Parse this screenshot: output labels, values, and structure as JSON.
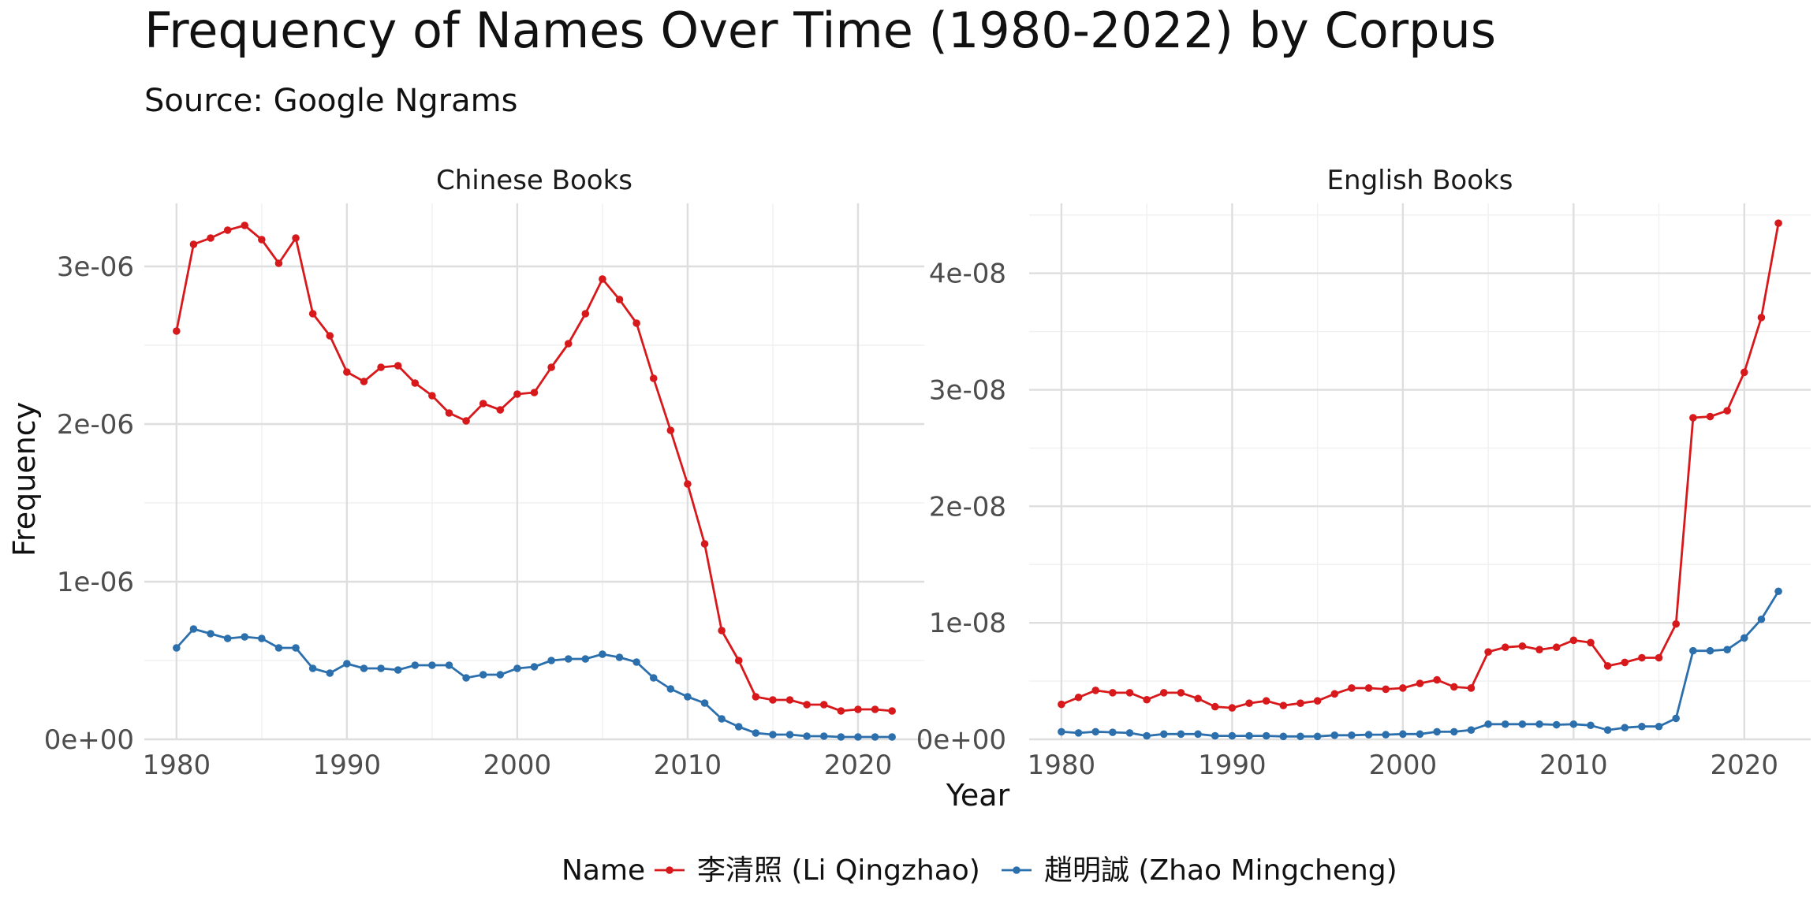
{
  "title": "Frequency of Names Over Time (1980-2022) by Corpus",
  "subtitle": "Source: Google Ngrams",
  "xlabel": "Year",
  "ylabel": "Frequency",
  "legend": {
    "title": "Name",
    "entries": [
      "李清照 (Li Qingzhao)",
      "趙明誠 (Zhao Mingcheng)"
    ],
    "placement": "bottom"
  },
  "colors": {
    "li": "#d7191c",
    "zhao": "#2c6fad"
  },
  "chart_data": [
    {
      "type": "line",
      "panel": "Chinese Books",
      "xlim": [
        1980,
        2022
      ],
      "ylim": [
        0,
        3.4e-06
      ],
      "xticks": [
        1980,
        1990,
        2000,
        2010,
        2020
      ],
      "yticks": [
        0,
        1e-06,
        2e-06,
        3e-06
      ],
      "ytick_labels": [
        "0e+00",
        "1e-06",
        "2e-06",
        "3e-06"
      ],
      "grid": true,
      "x": [
        1980,
        1981,
        1982,
        1983,
        1984,
        1985,
        1986,
        1987,
        1988,
        1989,
        1990,
        1991,
        1992,
        1993,
        1994,
        1995,
        1996,
        1997,
        1998,
        1999,
        2000,
        2001,
        2002,
        2003,
        2004,
        2005,
        2006,
        2007,
        2008,
        2009,
        2010,
        2011,
        2012,
        2013,
        2014,
        2015,
        2016,
        2017,
        2018,
        2019,
        2020,
        2021,
        2022
      ],
      "series": [
        {
          "name": "李清照 (Li Qingzhao)",
          "color": "#d7191c",
          "values": [
            2.59e-06,
            3.14e-06,
            3.18e-06,
            3.23e-06,
            3.26e-06,
            3.17e-06,
            3.02e-06,
            3.18e-06,
            2.7e-06,
            2.56e-06,
            2.33e-06,
            2.27e-06,
            2.36e-06,
            2.37e-06,
            2.26e-06,
            2.18e-06,
            2.07e-06,
            2.02e-06,
            2.13e-06,
            2.09e-06,
            2.19e-06,
            2.2e-06,
            2.36e-06,
            2.51e-06,
            2.7e-06,
            2.92e-06,
            2.79e-06,
            2.64e-06,
            2.29e-06,
            1.96e-06,
            1.62e-06,
            1.24e-06,
            6.9e-07,
            5e-07,
            2.7e-07,
            2.5e-07,
            2.5e-07,
            2.2e-07,
            2.2e-07,
            1.8e-07,
            1.9e-07,
            1.9e-07,
            1.8e-07
          ]
        },
        {
          "name": "趙明誠 (Zhao Mingcheng)",
          "color": "#2c6fad",
          "values": [
            5.8e-07,
            7e-07,
            6.7e-07,
            6.4e-07,
            6.5e-07,
            6.4e-07,
            5.8e-07,
            5.8e-07,
            4.5e-07,
            4.2e-07,
            4.8e-07,
            4.5e-07,
            4.5e-07,
            4.4e-07,
            4.7e-07,
            4.7e-07,
            4.7e-07,
            3.9e-07,
            4.1e-07,
            4.1e-07,
            4.5e-07,
            4.6e-07,
            5e-07,
            5.1e-07,
            5.1e-07,
            5.4e-07,
            5.2e-07,
            4.9e-07,
            3.9e-07,
            3.2e-07,
            2.7e-07,
            2.3e-07,
            1.3e-07,
            8e-08,
            4e-08,
            3e-08,
            3e-08,
            2e-08,
            2e-08,
            1.5e-08,
            1.5e-08,
            1.5e-08,
            1.5e-08
          ]
        }
      ]
    },
    {
      "type": "line",
      "panel": "English Books",
      "xlim": [
        1980,
        2022
      ],
      "ylim": [
        0,
        4.6e-08
      ],
      "xticks": [
        1980,
        1990,
        2000,
        2010,
        2020
      ],
      "yticks": [
        0,
        1e-08,
        2e-08,
        3e-08,
        4e-08
      ],
      "ytick_labels": [
        "0e+00",
        "1e-08",
        "2e-08",
        "3e-08",
        "4e-08"
      ],
      "grid": true,
      "x": [
        1980,
        1981,
        1982,
        1983,
        1984,
        1985,
        1986,
        1987,
        1988,
        1989,
        1990,
        1991,
        1992,
        1993,
        1994,
        1995,
        1996,
        1997,
        1998,
        1999,
        2000,
        2001,
        2002,
        2003,
        2004,
        2005,
        2006,
        2007,
        2008,
        2009,
        2010,
        2011,
        2012,
        2013,
        2014,
        2015,
        2016,
        2017,
        2018,
        2019,
        2020,
        2021,
        2022
      ],
      "series": [
        {
          "name": "李清照 (Li Qingzhao)",
          "color": "#d7191c",
          "values": [
            3e-09,
            3.6e-09,
            4.2e-09,
            4e-09,
            4e-09,
            3.4e-09,
            4e-09,
            4e-09,
            3.5e-09,
            2.8e-09,
            2.7e-09,
            3.1e-09,
            3.3e-09,
            2.9e-09,
            3.1e-09,
            3.3e-09,
            3.9e-09,
            4.4e-09,
            4.4e-09,
            4.3e-09,
            4.4e-09,
            4.8e-09,
            5.1e-09,
            4.5e-09,
            4.4e-09,
            7.5e-09,
            7.9e-09,
            8e-09,
            7.7e-09,
            7.9e-09,
            8.5e-09,
            8.3e-09,
            6.3e-09,
            6.6e-09,
            7e-09,
            7e-09,
            9.9e-09,
            2.76e-08,
            2.77e-08,
            2.82e-08,
            3.15e-08,
            3.62e-08,
            4.43e-08
          ]
        },
        {
          "name": "趙明誠 (Zhao Mingcheng)",
          "color": "#2c6fad",
          "values": [
            6.5e-10,
            5.5e-10,
            6.5e-10,
            6e-10,
            5.5e-10,
            3e-10,
            4.5e-10,
            4.5e-10,
            4.5e-10,
            3e-10,
            3e-10,
            3e-10,
            3e-10,
            2.5e-10,
            2.5e-10,
            2.5e-10,
            3.5e-10,
            3.5e-10,
            4e-10,
            4e-10,
            4.5e-10,
            4.5e-10,
            6.5e-10,
            6.5e-10,
            8e-10,
            1.3e-09,
            1.3e-09,
            1.3e-09,
            1.3e-09,
            1.25e-09,
            1.3e-09,
            1.2e-09,
            8e-10,
            1e-09,
            1.1e-09,
            1.1e-09,
            1.8e-09,
            7.6e-09,
            7.6e-09,
            7.7e-09,
            8.7e-09,
            1.03e-08,
            1.27e-08
          ]
        }
      ]
    }
  ]
}
